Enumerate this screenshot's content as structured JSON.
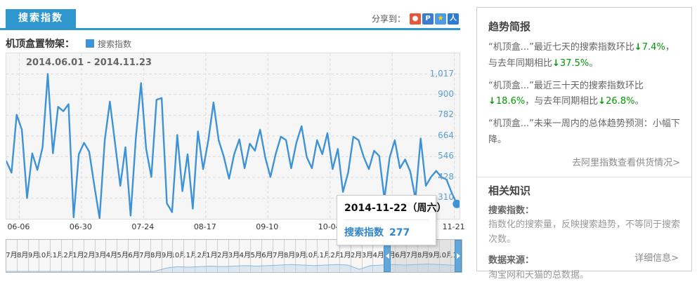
{
  "colors": {
    "accent": "#2F96CE",
    "line": "#3E93D6",
    "ylabel": "#5C9FD6",
    "green": "#009900",
    "tooltip_text": "#3185C9"
  },
  "header": {
    "tab": "搜索指数",
    "share_label": "分享到：",
    "share_icons": [
      {
        "name": "weibo-icon",
        "bg": "#E6573C",
        "fg": "#ffffff",
        "glyph": "●"
      },
      {
        "name": "pengyou-icon",
        "bg": "#3B7CD2",
        "fg": "#ffffff",
        "glyph": "P"
      },
      {
        "name": "qzone-icon",
        "bg": "#4C9BE8",
        "fg": "#FFD400",
        "glyph": "★"
      },
      {
        "name": "renren-icon",
        "bg": "#2D7BD4",
        "fg": "#ffffff",
        "glyph": "人"
      }
    ]
  },
  "legend": {
    "product": "机顶盒置物架：",
    "series_label": "搜索指数"
  },
  "chart": {
    "range_label": "2014.06.01 - 2014.11.23",
    "tooltip": {
      "date": "2014-11-22（周六）",
      "series": "搜索指数",
      "value": "277"
    }
  },
  "chart_data": {
    "type": "line",
    "title": "机顶盒置物架 搜索指数",
    "x_start": "2014-06-01",
    "x_end": "2014-11-23",
    "total_days": 175,
    "sample_interval_days": 2,
    "ylim": [
      192,
      1135
    ],
    "grid": true,
    "yticks": [
      {
        "value": 310,
        "label": "310"
      },
      {
        "value": 428,
        "label": "428"
      },
      {
        "value": 546,
        "label": "546"
      },
      {
        "value": 664,
        "label": "664"
      },
      {
        "value": 782,
        "label": "782"
      },
      {
        "value": 900,
        "label": "900"
      },
      {
        "value": 1017,
        "label": "1,017"
      }
    ],
    "xticks": [
      {
        "label": "06-06",
        "day": 5
      },
      {
        "label": "06-30",
        "day": 29
      },
      {
        "label": "07-24",
        "day": 53
      },
      {
        "label": "08-17",
        "day": 77
      },
      {
        "label": "09-10",
        "day": 101
      },
      {
        "label": "10-04",
        "day": 125
      },
      {
        "label": "10-28",
        "day": 149
      },
      {
        "label": "11-21",
        "day": 173
      }
    ],
    "series": [
      {
        "name": "搜索指数",
        "values": [
          520,
          455,
          785,
          700,
          310,
          565,
          470,
          600,
          1017,
          565,
          830,
          805,
          845,
          200,
          560,
          625,
          575,
          380,
          195,
          640,
          860,
          620,
          380,
          600,
          210,
          650,
          965,
          590,
          430,
          870,
          880,
          280,
          230,
          670,
          350,
          560,
          250,
          690,
          475,
          640,
          855,
          640,
          545,
          420,
          560,
          645,
          480,
          620,
          580,
          700,
          540,
          430,
          560,
          660,
          640,
          480,
          625,
          720,
          545,
          480,
          640,
          560,
          680,
          475,
          590,
          345,
          455,
          660,
          640,
          545,
          475,
          580,
          550,
          305,
          540,
          640,
          480,
          530,
          460,
          305,
          650,
          380,
          430,
          465,
          430,
          415,
          340,
          277
        ]
      }
    ],
    "highlight": {
      "date": "2014-11-22",
      "weekday": "周六",
      "value": 277
    }
  },
  "timeline": {
    "months": [
      "7月",
      "8月",
      "9月",
      "10月",
      "11月",
      "12月",
      "1月",
      "2月",
      "3月",
      "4月",
      "5月",
      "6月",
      "7月",
      "8月",
      "9月",
      "10月",
      "11月",
      "12月",
      "1月",
      "2月",
      "3月",
      "4月",
      "5月",
      "6月",
      "7月",
      "8月",
      "9月",
      "10月",
      "11月",
      "12月",
      "1月",
      "2月",
      "3月",
      "4月",
      "5月",
      "6月",
      "7月",
      "8月",
      "9月",
      "10月",
      "11月"
    ],
    "selection_start_index": 34,
    "selection_end_index": 40,
    "sparkline": [
      0,
      0,
      0,
      0,
      0,
      0,
      0,
      0,
      0,
      0,
      0,
      0,
      0,
      0,
      3,
      4.5,
      4,
      4.5,
      5,
      4.5,
      5,
      5.5,
      5,
      5.5,
      6,
      6.5,
      6,
      5.5,
      6,
      6.5,
      6,
      2,
      5.5,
      6,
      6.5,
      6,
      6.5,
      7,
      6.5,
      6,
      5.5
    ]
  },
  "briefing": {
    "title": "趋势简报",
    "items": [
      {
        "lead": "“机顶盒...”最近七天的搜索指数环比",
        "pct1": "7.4%",
        "mid": "，与去年同期相比",
        "pct2": "37.5%",
        "end": "。"
      },
      {
        "lead": "“机顶盒...”最近三十天的搜索指数环比",
        "pct1": "18.6%",
        "mid": "，与去年同期相比",
        "pct2": "26.8%",
        "end": "。"
      }
    ],
    "forecast": "“机顶盒...”未来一周内的总体趋势预测：小幅下降。",
    "link": "去阿里指数查看供货情况>"
  },
  "knowledge": {
    "title": "相关知识",
    "term1": "搜索指数：",
    "def1": "指数化的搜索量，反映搜索趋势，不等同于搜索次数。",
    "term2": "数据来源：",
    "def2": "淘宝网和天猫的总数据。",
    "link": "详细信息>"
  }
}
